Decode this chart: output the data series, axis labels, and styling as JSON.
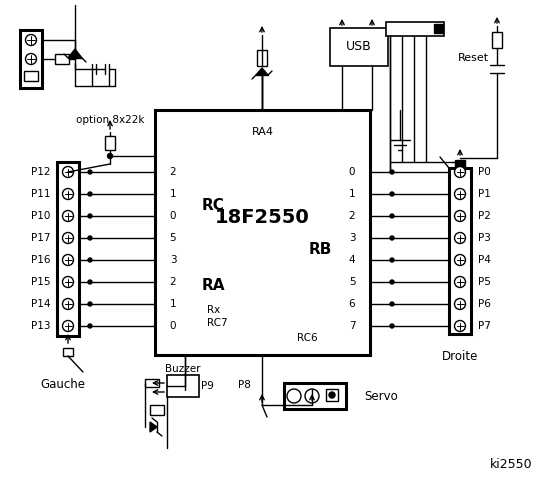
{
  "bg_color": "#ffffff",
  "left_labels": [
    "P12",
    "P11",
    "P10",
    "P17",
    "P16",
    "P15",
    "P14",
    "P13"
  ],
  "right_labels": [
    "P0",
    "P1",
    "P2",
    "P3",
    "P4",
    "P5",
    "P6",
    "P7"
  ],
  "rc_pins": [
    "2",
    "1",
    "0",
    "5",
    "3",
    "2",
    "1",
    "0"
  ],
  "rb_pins": [
    "0",
    "1",
    "2",
    "3",
    "4",
    "5",
    "6",
    "7"
  ],
  "chip_text": "18F2550",
  "ra4_text": "RA4",
  "rc_text": "RC",
  "ra_text": "RA",
  "rb_text": "RB",
  "rx_text": "Rx",
  "rc7_text": "RC7",
  "rc6_text": "RC6",
  "usb_text": "USB",
  "reset_text": "Reset",
  "buzzer_text": "Buzzer",
  "option_text": "option 8x22k",
  "gauche_text": "Gauche",
  "droite_text": "Droite",
  "servo_text": "Servo",
  "p8_text": "P8",
  "p9_text": "P9",
  "ki_text": "ki2550"
}
